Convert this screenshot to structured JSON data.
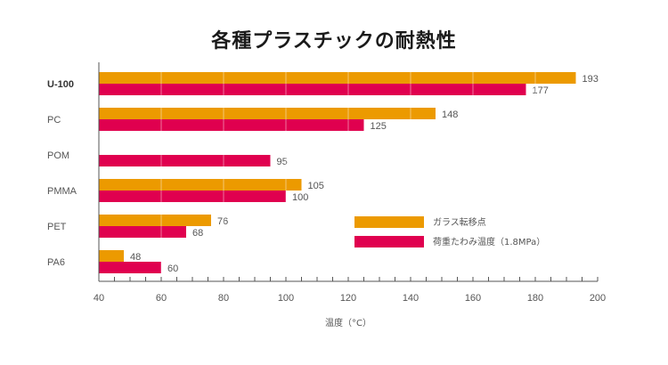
{
  "chart_data": {
    "type": "bar",
    "orientation": "horizontal",
    "title": "各種プラスチックの耐熱性",
    "xlabel": "温度（°C）",
    "ylabel": "",
    "xlim": [
      40,
      200
    ],
    "xticks": [
      "40",
      "60",
      "80",
      "100",
      "120",
      "140",
      "160",
      "180",
      "200"
    ],
    "categories": [
      "U-100",
      "PC",
      "POM",
      "PMMA",
      "PET",
      "PA6"
    ],
    "highlight_category": "U-100",
    "series": [
      {
        "name": "ガラス転移点",
        "color": "#ec9a00",
        "values": [
          193,
          148,
          null,
          105,
          76,
          48
        ]
      },
      {
        "name": "荷重たわみ温度（1.8MPa）",
        "color": "#e0004f",
        "values": [
          177,
          125,
          95,
          100,
          68,
          60
        ]
      }
    ],
    "legend": "center-right",
    "grid": true
  }
}
